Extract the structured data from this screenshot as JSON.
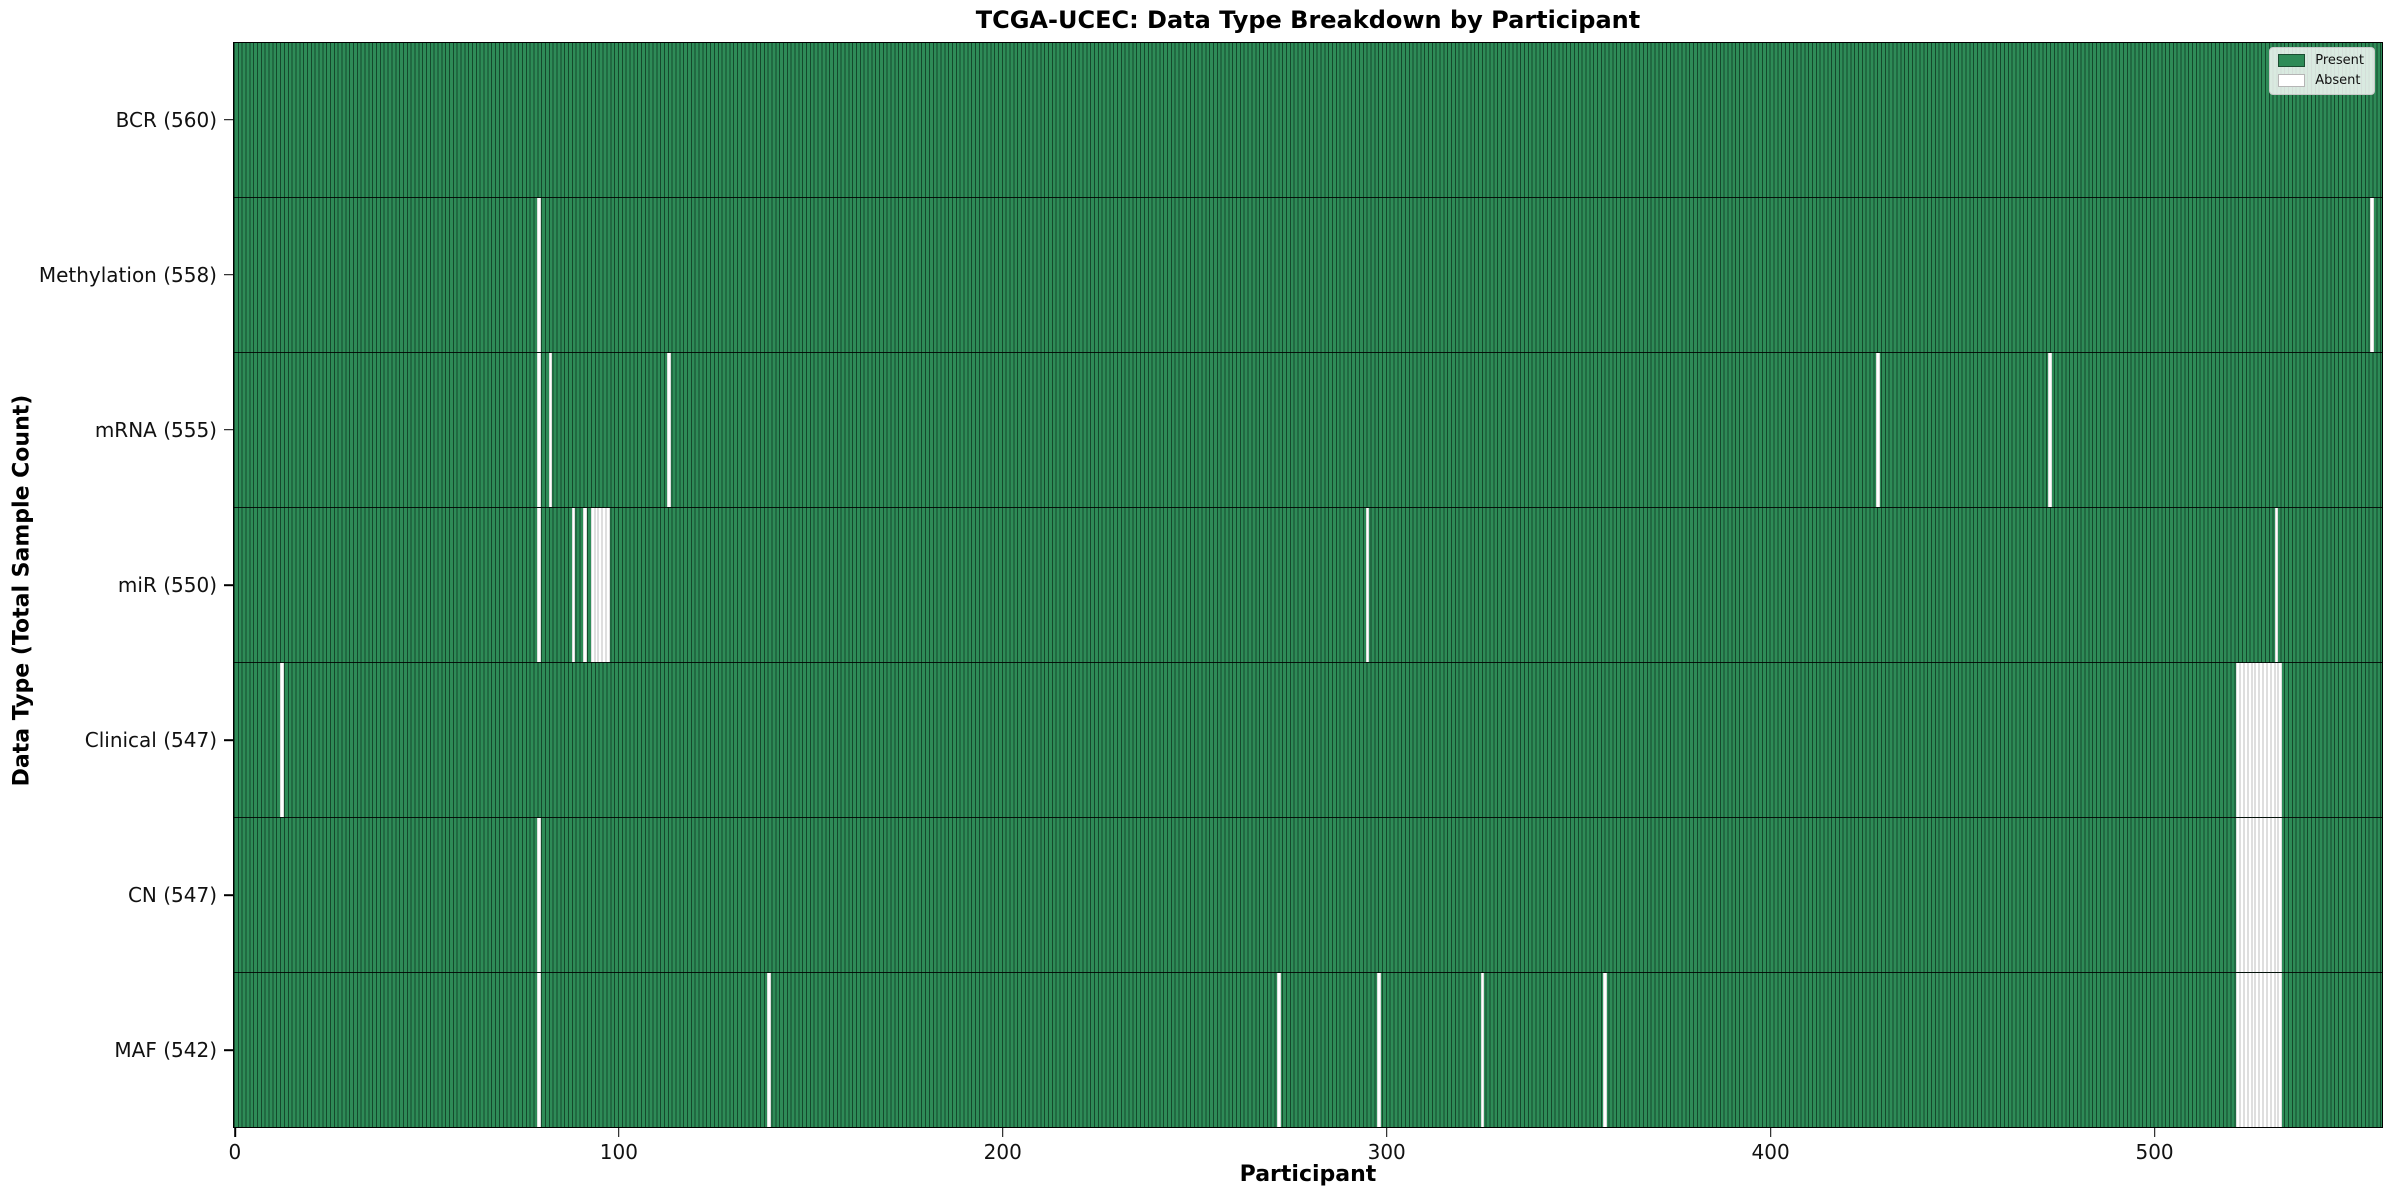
{
  "figure": {
    "title": "TCGA-UCEC: Data Type Breakdown by Participant"
  },
  "chart_data": {
    "type": "heatmap",
    "title": "TCGA-UCEC: Data Type Breakdown by Participant",
    "xlabel": "Participant",
    "ylabel": "Data Type (Total Sample Count)",
    "x_ticks": [
      0,
      100,
      200,
      300,
      400,
      500
    ],
    "x_range": [
      0,
      560
    ],
    "n_participants": 560,
    "grid": false,
    "colors": {
      "present": "#2e8b57",
      "absent": "#ffffff",
      "bar_edge": "#14492c",
      "row_separator": "#000000"
    },
    "legend": {
      "position": "top-right",
      "entries": [
        {
          "label": "Present",
          "color": "#2e8b57"
        },
        {
          "label": "Absent",
          "color": "#ffffff"
        }
      ]
    },
    "rows": [
      {
        "label": "BCR (560)",
        "data_type": "BCR",
        "present_count": 560,
        "absent_participants": []
      },
      {
        "label": "Methylation (558)",
        "data_type": "Methylation",
        "present_count": 558,
        "absent_participants": [
          79,
          557
        ]
      },
      {
        "label": "mRNA (555)",
        "data_type": "mRNA",
        "present_count": 555,
        "absent_participants": [
          79,
          82,
          113,
          428,
          473
        ]
      },
      {
        "label": "miR (550)",
        "data_type": "miR",
        "present_count": 550,
        "absent_participants": [
          79,
          88,
          91,
          93,
          94,
          95,
          96,
          97,
          295,
          532
        ]
      },
      {
        "label": "Clinical (547)",
        "data_type": "Clinical",
        "present_count": 547,
        "absent_participants": [
          12,
          522,
          523,
          524,
          525,
          526,
          527,
          528,
          529,
          530,
          531,
          532,
          533
        ]
      },
      {
        "label": "CN (547)",
        "data_type": "CN",
        "present_count": 547,
        "absent_participants": [
          79,
          522,
          523,
          524,
          525,
          526,
          527,
          528,
          529,
          530,
          531,
          532,
          533
        ]
      },
      {
        "label": "MAF (542)",
        "data_type": "MAF",
        "present_count": 542,
        "absent_participants": [
          79,
          139,
          272,
          298,
          325,
          357,
          522,
          523,
          524,
          525,
          526,
          527,
          528,
          529,
          530,
          531,
          532,
          533
        ]
      }
    ]
  }
}
